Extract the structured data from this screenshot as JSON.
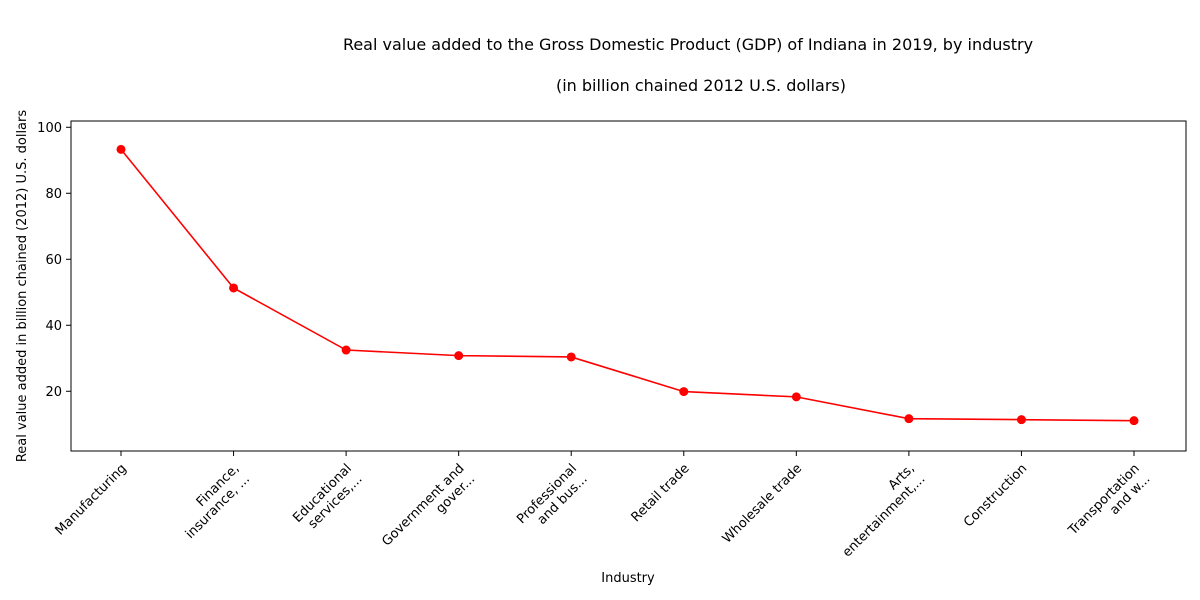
{
  "chart_data": {
    "type": "line",
    "title": "Real value added to the Gross Domestic Product (GDP) of Indiana in 2019, by industry",
    "subtitle": "(in billion chained 2012 U.S. dollars)",
    "xlabel": "Industry",
    "ylabel": "Real value added in billion chained (2012) U.S. dollars",
    "categories": [
      "Manufacturing",
      "Finance,\ninsurance, ...",
      "Educational\nservices,...",
      "Government and\ngover...",
      "Professional\nand bus...",
      "Retail trade",
      "Wholesale trade",
      "Arts,\nentertainment,...",
      "Construction",
      "Transportation\nand w..."
    ],
    "values": [
      93.3,
      51.3,
      32.5,
      30.8,
      30.4,
      19.9,
      18.3,
      11.7,
      11.4,
      11.1
    ],
    "ylim": [
      1.9,
      101.9
    ],
    "yticks": [
      20,
      40,
      60,
      80,
      100
    ],
    "grid": false,
    "line_color": "#ff0000",
    "marker_color": "#ff0000"
  }
}
